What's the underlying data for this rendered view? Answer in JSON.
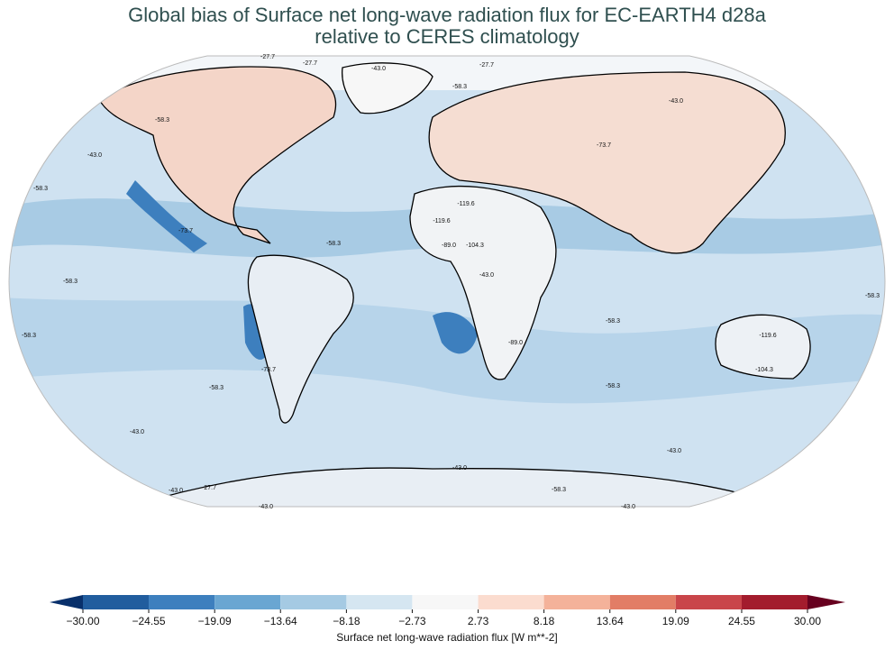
{
  "title": [
    "Global bias of Surface net long-wave radiation flux for EC-EARTH4 d28a",
    "relative to CERES climatology"
  ],
  "contour_labels": [
    "-27.7",
    "-43.0",
    "-58.3",
    "-73.7",
    "-89.0",
    "-104.3",
    "-119.6"
  ],
  "colorbar": {
    "label": "Surface net long-wave radiation flux [W m**-2]",
    "lim": [
      -30,
      30
    ],
    "ticks": [
      {
        "value": -30,
        "label": "−30.00"
      },
      {
        "value": -24.55,
        "label": "−24.55"
      },
      {
        "value": -19.09,
        "label": "−19.09"
      },
      {
        "value": -13.64,
        "label": "−13.64"
      },
      {
        "value": -8.18,
        "label": "−8.18"
      },
      {
        "value": -2.73,
        "label": "−2.73"
      },
      {
        "value": 2.73,
        "label": "2.73"
      },
      {
        "value": 8.18,
        "label": "8.18"
      },
      {
        "value": 13.64,
        "label": "13.64"
      },
      {
        "value": 19.09,
        "label": "19.09"
      },
      {
        "value": 24.55,
        "label": "24.55"
      },
      {
        "value": 30,
        "label": "30.00"
      }
    ],
    "colors": [
      "#215d9e",
      "#3d7fbe",
      "#6aa6d2",
      "#a5cae3",
      "#d5e6f1",
      "#f7f7f7",
      "#fbdccf",
      "#f4b29a",
      "#e27d66",
      "#c9454a",
      "#a31c2d"
    ],
    "extend_colors": [
      "#08306b",
      "#67001f"
    ]
  }
}
